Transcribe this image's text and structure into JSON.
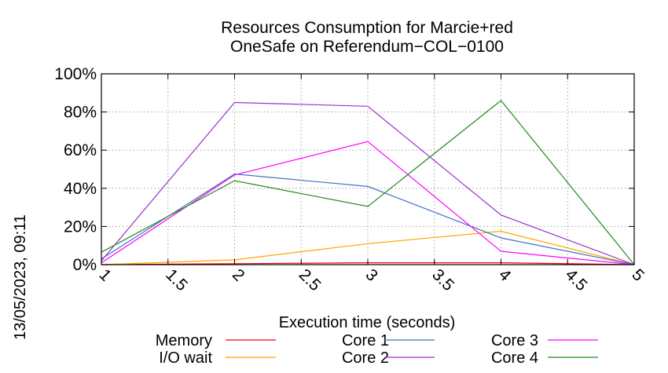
{
  "timestamp": "13/05/2023, 09:11",
  "chart_data": {
    "type": "line",
    "title_lines": [
      "Resources Consumption for Marcie+red",
      "OneSafe on Referendum−COL−0100"
    ],
    "xlabel": "Execution time (seconds)",
    "ylabel": "",
    "xlim": [
      1,
      5
    ],
    "ylim": [
      0,
      100
    ],
    "x_ticks": [
      1,
      1.5,
      2,
      2.5,
      3,
      3.5,
      4,
      4.5,
      5
    ],
    "x_tick_labels": [
      "1",
      "1.5",
      "2",
      "2.5",
      "3",
      "3.5",
      "4",
      "4.5",
      "5"
    ],
    "y_ticks": [
      0,
      20,
      40,
      60,
      80,
      100
    ],
    "y_tick_labels": [
      "0%",
      "20%",
      "40%",
      "60%",
      "80%",
      "100%"
    ],
    "grid": true,
    "legend_position": "bottom",
    "series": [
      {
        "name": "Memory",
        "color": "#ff0000",
        "x": [
          1,
          2,
          3,
          4,
          5
        ],
        "y": [
          0,
          0.5,
          1,
          1,
          0
        ]
      },
      {
        "name": "I/O wait",
        "color": "#ffa500",
        "x": [
          1,
          2,
          3,
          4,
          5
        ],
        "y": [
          0,
          2.5,
          11,
          17.5,
          0
        ]
      },
      {
        "name": "Core 1",
        "color": "#4472c4",
        "x": [
          1,
          2,
          3,
          4,
          5
        ],
        "y": [
          3,
          47.5,
          41,
          14,
          0
        ]
      },
      {
        "name": "Core 2",
        "color": "#9932cc",
        "x": [
          1,
          2,
          3,
          4,
          5
        ],
        "y": [
          2,
          85,
          83,
          26,
          0
        ]
      },
      {
        "name": "Core 3",
        "color": "#ff00ff",
        "x": [
          1,
          2,
          3,
          4,
          5
        ],
        "y": [
          1,
          47,
          64.5,
          7,
          0
        ]
      },
      {
        "name": "Core 4",
        "color": "#228b22",
        "x": [
          1,
          2,
          3,
          4,
          5
        ],
        "y": [
          6.5,
          44,
          30.5,
          86,
          0
        ]
      }
    ]
  }
}
